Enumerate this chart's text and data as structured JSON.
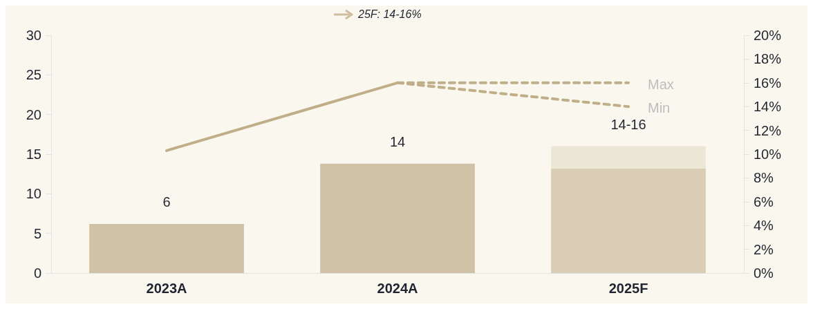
{
  "chart_data": {
    "type": "bar",
    "categories": [
      "2023A",
      "2024A",
      "2025F"
    ],
    "stacked": true,
    "legend": false,
    "grid": false,
    "marker": "none",
    "ylim": [
      0,
      30
    ],
    "yticks": [
      0,
      5,
      10,
      15,
      20,
      25,
      30
    ],
    "y2lim": [
      0,
      20
    ],
    "y2ticks": [
      {
        "value": 0,
        "label": "0%"
      },
      {
        "value": 2,
        "label": "2%"
      },
      {
        "value": 4,
        "label": "4%"
      },
      {
        "value": 6,
        "label": "6%"
      },
      {
        "value": 8,
        "label": "8%"
      },
      {
        "value": 10,
        "label": "10%"
      },
      {
        "value": 12,
        "label": "12%"
      },
      {
        "value": 14,
        "label": "14%"
      },
      {
        "value": 16,
        "label": "16%"
      },
      {
        "value": 18,
        "label": "18%"
      },
      {
        "value": 20,
        "label": "20%"
      }
    ],
    "series": [
      {
        "color": "#cfc2a6",
        "values": [
          6.2,
          13.8,
          null
        ]
      },
      {
        "color": "#d9ceb5",
        "values": [
          null,
          null,
          13.2
        ]
      },
      {
        "color": "#ece6d6",
        "values": [
          null,
          null,
          2.8
        ]
      },
      {
        "type": "line",
        "axis": "y2",
        "color": "#bfae88",
        "line_style": "solid",
        "values": [
          10.3,
          16,
          null
        ]
      },
      {
        "type": "line",
        "axis": "y2",
        "name": "Max",
        "color": "#bfae88",
        "line_style": "dashed",
        "values": [
          null,
          16,
          16
        ]
      },
      {
        "type": "line",
        "axis": "y2",
        "name": "Min",
        "color": "#bfae88",
        "line_style": "dashed",
        "values": [
          null,
          16,
          14
        ]
      }
    ],
    "totals": [
      "6",
      "14",
      "14-16"
    ],
    "annotations": [
      "25F: 14-16%"
    ]
  }
}
